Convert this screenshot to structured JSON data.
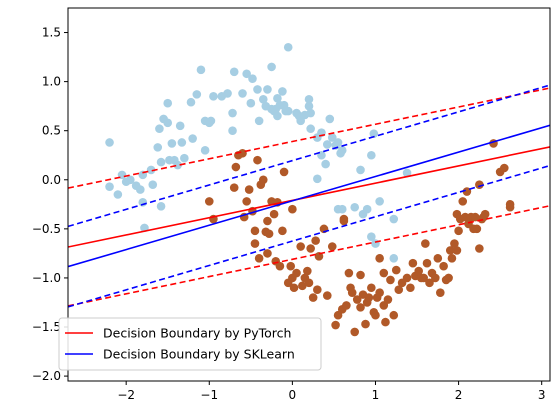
{
  "chart_data": {
    "type": "scatter",
    "title": "",
    "xlabel": "",
    "ylabel": "",
    "xlim": [
      -2.7,
      3.1
    ],
    "ylim": [
      -2.05,
      1.75
    ],
    "xticks": [
      -2,
      -1,
      0,
      1,
      2,
      3
    ],
    "yticks": [
      -2.0,
      -1.5,
      -1.0,
      -0.5,
      0.0,
      0.5,
      1.0,
      1.5
    ],
    "xtick_labels": [
      "−2",
      "−1",
      "0",
      "1",
      "2",
      "3"
    ],
    "ytick_labels": [
      "−2.0",
      "−1.5",
      "−1.0",
      "−0.5",
      "0.0",
      "0.5",
      "1.0",
      "1.5"
    ],
    "grid": false,
    "legend_position": "lower-left",
    "series": [
      {
        "kind": "points",
        "color": "#a6cee3",
        "points": [
          [
            -2.2,
            0.38
          ],
          [
            -2.2,
            -0.07
          ],
          [
            -2.1,
            -0.15
          ],
          [
            -2.05,
            0.05
          ],
          [
            -2.0,
            -0.02
          ],
          [
            -1.95,
            0.0
          ],
          [
            -1.88,
            -0.06
          ],
          [
            -1.83,
            -0.1
          ],
          [
            -1.8,
            -0.23
          ],
          [
            -1.8,
            0.05
          ],
          [
            -1.78,
            -0.49
          ],
          [
            -1.7,
            0.1
          ],
          [
            -1.68,
            -0.05
          ],
          [
            -1.62,
            0.33
          ],
          [
            -1.6,
            0.52
          ],
          [
            -1.58,
            0.18
          ],
          [
            -1.58,
            -0.27
          ],
          [
            -1.55,
            0.62
          ],
          [
            -1.5,
            0.78
          ],
          [
            -1.5,
            0.58
          ],
          [
            -1.48,
            0.2
          ],
          [
            -1.45,
            0.37
          ],
          [
            -1.42,
            0.2
          ],
          [
            -1.38,
            0.15
          ],
          [
            -1.35,
            0.55
          ],
          [
            -1.33,
            0.38
          ],
          [
            -1.3,
            0.22
          ],
          [
            -1.2,
            0.42
          ],
          [
            -1.22,
            0.79
          ],
          [
            -1.15,
            0.87
          ],
          [
            -1.1,
            1.12
          ],
          [
            -1.05,
            0.6
          ],
          [
            -1.05,
            0.3
          ],
          [
            -1.0,
            0.58
          ],
          [
            -0.98,
            0.6
          ],
          [
            -0.95,
            0.85
          ],
          [
            -0.85,
            0.85
          ],
          [
            -0.78,
            0.88
          ],
          [
            -0.7,
            1.1
          ],
          [
            -0.72,
            0.68
          ],
          [
            -0.72,
            0.5
          ],
          [
            -0.6,
            0.88
          ],
          [
            -0.55,
            1.08
          ],
          [
            -0.5,
            0.78
          ],
          [
            -0.48,
            1.03
          ],
          [
            -0.42,
            0.92
          ],
          [
            -0.4,
            0.6
          ],
          [
            -0.35,
            0.82
          ],
          [
            -0.32,
            0.75
          ],
          [
            -0.3,
            0.92
          ],
          [
            -0.25,
            1.15
          ],
          [
            -0.22,
            0.7
          ],
          [
            -0.2,
            0.72
          ],
          [
            -0.18,
            0.65
          ],
          [
            -0.15,
            0.76
          ],
          [
            -0.12,
            0.9
          ],
          [
            -0.1,
            0.76
          ],
          [
            -0.08,
            0.7
          ],
          [
            -0.05,
            1.35
          ],
          [
            -0.05,
            0.7
          ],
          [
            0.05,
            0.68
          ],
          [
            0.08,
            0.65
          ],
          [
            0.1,
            0.6
          ],
          [
            0.15,
            0.66
          ],
          [
            0.2,
            0.82
          ],
          [
            0.2,
            0.75
          ],
          [
            0.22,
            0.52
          ],
          [
            0.22,
            0.68
          ],
          [
            0.3,
            0.43
          ],
          [
            0.3,
            0.01
          ],
          [
            0.35,
            0.25
          ],
          [
            0.35,
            0.48
          ],
          [
            0.4,
            0.16
          ],
          [
            0.42,
            0.36
          ],
          [
            0.45,
            0.62
          ],
          [
            0.48,
            0.43
          ],
          [
            0.52,
            0.35
          ],
          [
            0.55,
            0.38
          ],
          [
            0.58,
            0.27
          ],
          [
            0.6,
            0.3
          ],
          [
            0.55,
            -0.3
          ],
          [
            0.6,
            -0.3
          ],
          [
            0.75,
            -0.28
          ],
          [
            0.82,
            0.1
          ],
          [
            0.85,
            -0.35
          ],
          [
            0.9,
            -0.3
          ],
          [
            0.95,
            -0.58
          ],
          [
            0.98,
            0.47
          ],
          [
            1.0,
            -0.65
          ],
          [
            1.05,
            -0.22
          ],
          [
            0.95,
            0.25
          ],
          [
            1.22,
            -0.4
          ],
          [
            1.22,
            -0.8
          ],
          [
            1.38,
            0.07
          ],
          [
            -0.25,
            0.72
          ],
          [
            -0.18,
            0.83
          ]
        ]
      },
      {
        "kind": "points",
        "color": "#b15928",
        "points": [
          [
            -1.0,
            -0.22
          ],
          [
            -0.95,
            -0.4
          ],
          [
            -0.7,
            -0.08
          ],
          [
            -0.68,
            0.13
          ],
          [
            -0.65,
            0.25
          ],
          [
            -0.6,
            0.27
          ],
          [
            -0.58,
            -0.38
          ],
          [
            -0.55,
            -0.22
          ],
          [
            -0.52,
            -0.1
          ],
          [
            -0.48,
            -0.32
          ],
          [
            -0.45,
            -0.52
          ],
          [
            -0.45,
            -0.65
          ],
          [
            -0.42,
            0.2
          ],
          [
            -0.4,
            -0.8
          ],
          [
            -0.38,
            -0.05
          ],
          [
            -0.35,
            0.0
          ],
          [
            -0.32,
            -0.53
          ],
          [
            -0.3,
            -0.75
          ],
          [
            -0.28,
            -0.55
          ],
          [
            -0.25,
            -0.22
          ],
          [
            -0.22,
            -0.35
          ],
          [
            -0.2,
            -0.83
          ],
          [
            -0.18,
            -0.23
          ],
          [
            -0.15,
            -0.88
          ],
          [
            -0.12,
            -0.52
          ],
          [
            -0.1,
            0.08
          ],
          [
            -0.05,
            -1.05
          ],
          [
            -0.02,
            -0.88
          ],
          [
            0.0,
            -1.0
          ],
          [
            0.02,
            -1.1
          ],
          [
            0.05,
            -0.95
          ],
          [
            0.1,
            -0.68
          ],
          [
            0.12,
            -1.08
          ],
          [
            0.15,
            -1.0
          ],
          [
            0.18,
            -0.93
          ],
          [
            0.2,
            -1.05
          ],
          [
            0.22,
            -0.7
          ],
          [
            0.25,
            -1.2
          ],
          [
            0.28,
            -0.62
          ],
          [
            0.3,
            -1.12
          ],
          [
            0.32,
            -0.78
          ],
          [
            0.38,
            -0.5
          ],
          [
            0.42,
            -1.18
          ],
          [
            0.48,
            -0.68
          ],
          [
            0.52,
            -1.48
          ],
          [
            0.55,
            -1.38
          ],
          [
            0.6,
            -1.32
          ],
          [
            0.62,
            -0.4
          ],
          [
            0.65,
            -1.28
          ],
          [
            0.68,
            -0.95
          ],
          [
            0.7,
            -1.1
          ],
          [
            0.72,
            -1.15
          ],
          [
            0.75,
            -1.55
          ],
          [
            0.78,
            -1.22
          ],
          [
            0.82,
            -1.3
          ],
          [
            0.82,
            -0.97
          ],
          [
            0.85,
            -1.17
          ],
          [
            0.88,
            -1.47
          ],
          [
            0.9,
            -1.25
          ],
          [
            0.92,
            -1.2
          ],
          [
            0.95,
            -1.1
          ],
          [
            0.98,
            -1.35
          ],
          [
            1.0,
            -1.38
          ],
          [
            1.02,
            -1.2
          ],
          [
            1.05,
            -1.15
          ],
          [
            1.05,
            -0.8
          ],
          [
            1.1,
            -1.28
          ],
          [
            1.12,
            -1.45
          ],
          [
            1.15,
            -1.22
          ],
          [
            1.18,
            -1.02
          ],
          [
            1.22,
            -1.38
          ],
          [
            1.25,
            -0.92
          ],
          [
            1.28,
            -1.12
          ],
          [
            1.32,
            -1.05
          ],
          [
            1.38,
            -1.0
          ],
          [
            1.42,
            -1.1
          ],
          [
            1.45,
            -0.85
          ],
          [
            1.48,
            -0.98
          ],
          [
            1.52,
            -0.93
          ],
          [
            1.55,
            -1.0
          ],
          [
            1.58,
            -1.0
          ],
          [
            1.6,
            -0.65
          ],
          [
            1.62,
            -0.85
          ],
          [
            1.65,
            -1.05
          ],
          [
            1.68,
            -0.95
          ],
          [
            1.72,
            -1.0
          ],
          [
            1.75,
            -0.8
          ],
          [
            1.78,
            -1.15
          ],
          [
            1.82,
            -0.88
          ],
          [
            1.85,
            -1.02
          ],
          [
            1.88,
            -1.0
          ],
          [
            1.9,
            -0.72
          ],
          [
            1.92,
            -0.8
          ],
          [
            1.95,
            -0.65
          ],
          [
            1.98,
            -0.72
          ],
          [
            2.0,
            -0.52
          ],
          [
            2.02,
            -0.4
          ],
          [
            2.05,
            -0.22
          ],
          [
            2.08,
            -0.38
          ],
          [
            2.1,
            -0.12
          ],
          [
            2.12,
            -0.45
          ],
          [
            2.15,
            -0.38
          ],
          [
            2.18,
            -0.5
          ],
          [
            2.2,
            -0.38
          ],
          [
            2.22,
            -0.5
          ],
          [
            2.25,
            -0.7
          ],
          [
            2.28,
            -0.4
          ],
          [
            2.32,
            -0.35
          ],
          [
            2.25,
            -0.05
          ],
          [
            2.42,
            0.37
          ],
          [
            2.5,
            0.08
          ],
          [
            2.55,
            0.12
          ],
          [
            2.62,
            -0.28
          ],
          [
            2.62,
            -0.25
          ],
          [
            1.98,
            -0.35
          ],
          [
            2.3,
            -0.38
          ],
          [
            -0.3,
            -0.42
          ],
          [
            0.0,
            -0.3
          ],
          [
            0.62,
            -0.42
          ],
          [
            1.1,
            -0.95
          ]
        ]
      },
      {
        "name": "Decision Boundary by PyTorch",
        "kind": "line",
        "color": "#ff0000",
        "style": "solid",
        "x": [
          -2.7,
          3.1
        ],
        "y": [
          -0.685,
          0.335
        ]
      },
      {
        "kind": "line",
        "color": "#ff0000",
        "style": "dashed",
        "x": [
          -2.7,
          3.1
        ],
        "y": [
          -0.085,
          0.935
        ]
      },
      {
        "kind": "line",
        "color": "#ff0000",
        "style": "dashed",
        "x": [
          -2.7,
          3.1
        ],
        "y": [
          -1.285,
          -0.265
        ]
      },
      {
        "name": "Decision Boundary by SKLearn",
        "kind": "line",
        "color": "#0000ff",
        "style": "solid",
        "x": [
          -2.7,
          3.1
        ],
        "y": [
          -0.885,
          0.555
        ]
      },
      {
        "kind": "line",
        "color": "#0000ff",
        "style": "dashed",
        "x": [
          -2.7,
          3.1
        ],
        "y": [
          -0.475,
          0.965
        ]
      },
      {
        "kind": "line",
        "color": "#0000ff",
        "style": "dashed",
        "x": [
          -2.7,
          3.1
        ],
        "y": [
          -1.295,
          0.145
        ]
      }
    ],
    "legend": [
      {
        "label": "Decision Boundary by PyTorch",
        "color": "#ff0000"
      },
      {
        "label": "Decision Boundary by SKLearn",
        "color": "#0000ff"
      }
    ]
  }
}
